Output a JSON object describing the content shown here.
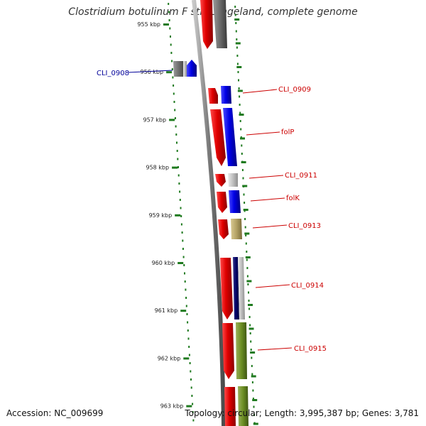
{
  "title": "Clostridium botulinum F str. Langeland, complete genome",
  "footer": {
    "accession": "Accession: NC_009699",
    "summary": "Topology: circular; Length: 3,995,387 bp; Genes: 3,781"
  },
  "colors": {
    "backbone": "#8c8c8c",
    "tick": "#1f7a1f",
    "forward_label": "#cc0000",
    "reverse_label": "#000099"
  },
  "ticks": [
    {
      "label": "955 kbp"
    },
    {
      "label": "956 kbp"
    },
    {
      "label": "957 kbp"
    },
    {
      "label": "958 kbp"
    },
    {
      "label": "959 kbp"
    },
    {
      "label": "960 kbp"
    },
    {
      "label": "961 kbp"
    },
    {
      "label": "962 kbp"
    },
    {
      "label": "963 kbp"
    }
  ],
  "gene_labels": [
    {
      "text": "CLI_0908",
      "strand": "reverse"
    },
    {
      "text": "CLI_0909",
      "strand": "forward"
    },
    {
      "text": "folP",
      "strand": "forward"
    },
    {
      "text": "CLI_0911",
      "strand": "forward"
    },
    {
      "text": "folK",
      "strand": "forward"
    },
    {
      "text": "CLI_0913",
      "strand": "forward"
    },
    {
      "text": "CLI_0914",
      "strand": "forward"
    },
    {
      "text": "CLI_0915",
      "strand": "forward"
    }
  ]
}
